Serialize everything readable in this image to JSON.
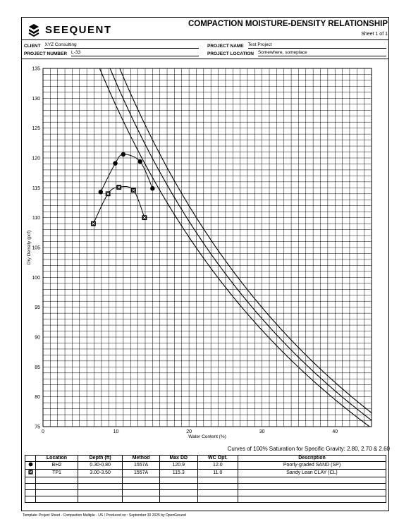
{
  "header": {
    "brand": "SEEQUENT",
    "report_title": "COMPACTION MOISTURE-DENSITY RELATIONSHIP",
    "sheet": "Sheet 1 of 1",
    "client_label": "CLIENT",
    "client": "XYZ Consulting",
    "project_number_label": "PROJECT NUMBER",
    "project_number": "L-33",
    "project_name_label": "PROJECT NAME",
    "project_name": "Test Project",
    "project_location_label": "PROJECT LOCATION",
    "project_location": "Somewhere, someplace"
  },
  "chart_data": {
    "type": "scatter",
    "xlabel": "Water Content (%)",
    "ylabel": "Dry Density (pcf)",
    "xlim": [
      0,
      45
    ],
    "ylim": [
      75,
      135
    ],
    "x_ticks": [
      0,
      10,
      20,
      30,
      40
    ],
    "y_ticks": [
      75,
      80,
      85,
      90,
      95,
      100,
      105,
      110,
      115,
      120,
      125,
      130,
      135
    ],
    "grid": true,
    "saturation_note": "Curves of 100% Saturation for Specific Gravity: 2.80, 2.70 & 2.60",
    "zero_air_voids_gs": [
      2.8,
      2.7,
      2.6
    ],
    "series": [
      {
        "name": "BH2",
        "marker": "circle",
        "points": [
          [
            7.9,
            114.3
          ],
          [
            9.9,
            119.1
          ],
          [
            11.0,
            120.6
          ],
          [
            13.3,
            119.4
          ],
          [
            15.0,
            114.9
          ]
        ]
      },
      {
        "name": "TP1",
        "marker": "box-x",
        "points": [
          [
            6.9,
            109.0
          ],
          [
            8.9,
            114.0
          ],
          [
            10.4,
            115.1
          ],
          [
            12.4,
            114.6
          ],
          [
            13.9,
            110.0
          ]
        ]
      }
    ]
  },
  "table": {
    "columns": [
      "",
      "Location",
      "Depth (ft)",
      "Method",
      "Max DD",
      "WC Opt.",
      "Description"
    ],
    "rows": [
      {
        "symbol": "circle",
        "location": "BH2",
        "depth": "0.30-0.80",
        "method": "1557A",
        "max_dd": "120.9",
        "wc_opt": "12.0",
        "description": "Poorly-graded SAND (SP)"
      },
      {
        "symbol": "box-x",
        "location": "TP1",
        "depth": "3.00-3.50",
        "method": "1557A",
        "max_dd": "115.3",
        "wc_opt": "11.0",
        "description": "Sandy Lean CLAY (CL)"
      }
    ]
  },
  "footer": "Template: Project Sheet - Compaction Multiple - US / Produced on : September 30 2025 by OpenGround"
}
